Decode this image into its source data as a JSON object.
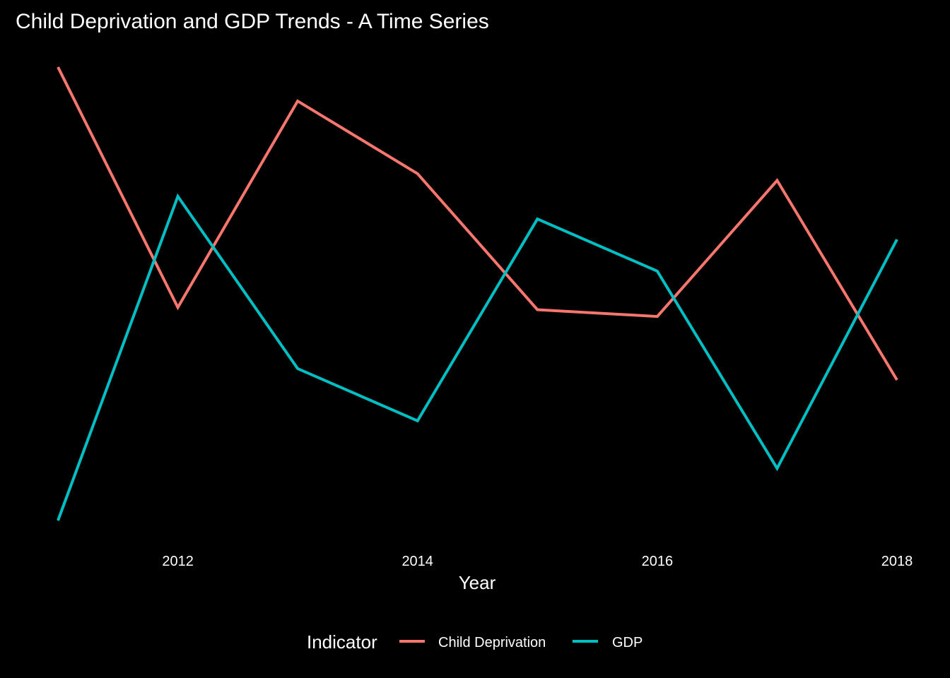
{
  "chart_data": {
    "type": "line",
    "title": "Child Deprivation and GDP Trends - A Time Series",
    "subtitle": "",
    "xlabel": "Year",
    "ylabel": "",
    "x": [
      2011,
      2012,
      2013,
      2014,
      2015,
      2016,
      2017,
      2018
    ],
    "x_ticks": [
      "2012",
      "2014",
      "2016",
      "2018"
    ],
    "x_tick_values": [
      2012,
      2014,
      2016,
      2018
    ],
    "xlim": [
      2011,
      2018
    ],
    "y_axis_shown": false,
    "grid": false,
    "background": "#000000",
    "legend": {
      "title": "Indicator",
      "position": "bottom"
    },
    "series": [
      {
        "name": "Child Deprivation",
        "color": "#F8766D",
        "values": [
          100,
          47,
          92.5,
          76.5,
          46.5,
          45,
          75,
          31
        ]
      },
      {
        "name": "GDP",
        "color": "#00BFC4",
        "values": [
          0,
          71.5,
          33.5,
          22,
          66.5,
          55,
          11.5,
          62
        ]
      }
    ]
  }
}
